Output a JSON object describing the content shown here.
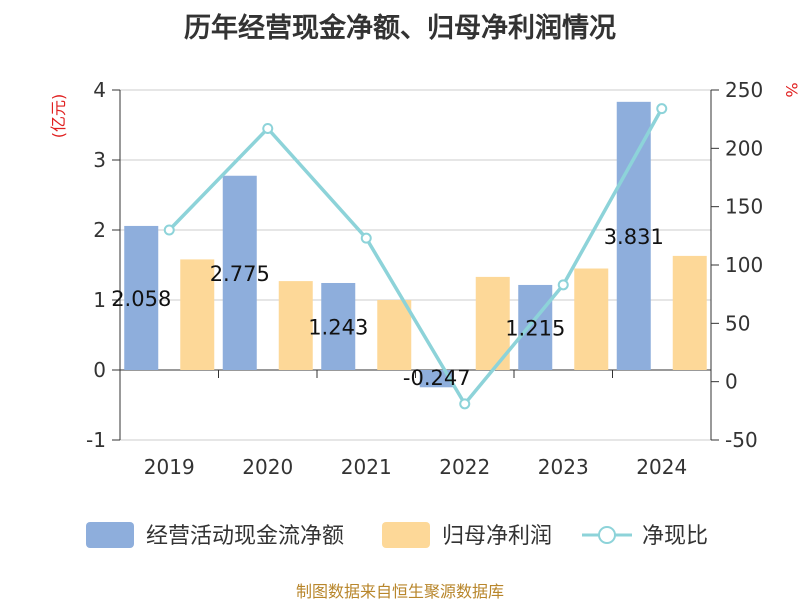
{
  "chart_data": {
    "type": "bar",
    "title": "历年经营现金净额、归母净利润情况",
    "categories": [
      "2019",
      "2020",
      "2021",
      "2022",
      "2023",
      "2024"
    ],
    "series": [
      {
        "name": "经营活动现金流净额",
        "type": "bar",
        "axis": "left",
        "values": [
          2.058,
          2.775,
          1.243,
          -0.247,
          1.215,
          3.831
        ],
        "color": "#8eaedc"
      },
      {
        "name": "归母净利润",
        "type": "bar",
        "axis": "left",
        "values": [
          1.58,
          1.27,
          1.0,
          1.33,
          1.45,
          1.63
        ],
        "color": "#fdd898"
      },
      {
        "name": "净现比",
        "type": "line",
        "axis": "right",
        "values": [
          130,
          217,
          123,
          -19,
          83,
          234
        ],
        "color": "#8dd3d9"
      }
    ],
    "data_labels": [
      "2.058",
      "2.775",
      "1.243",
      "-0.247",
      "1.215",
      "3.831"
    ],
    "left_axis": {
      "label": "(亿元)",
      "min": -1,
      "max": 4,
      "ticks": [
        "-1",
        "0",
        "1",
        "2",
        "3",
        "4"
      ]
    },
    "right_axis": {
      "label": "%",
      "min": -50,
      "max": 250,
      "ticks": [
        "-50",
        "0",
        "50",
        "100",
        "150",
        "200",
        "250"
      ]
    },
    "grid": true,
    "legend_position": "bottom"
  },
  "source": "制图数据来自恒生聚源数据库"
}
